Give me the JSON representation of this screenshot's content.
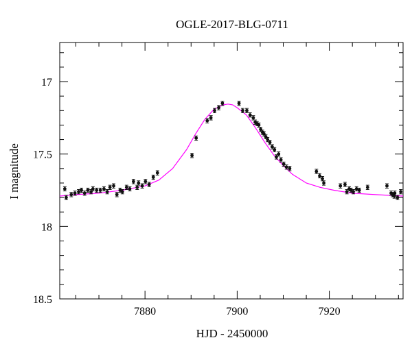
{
  "chart_data": {
    "type": "scatter",
    "title": "OGLE-2017-BLG-0711",
    "xlabel": "HJD - 2450000",
    "ylabel": "I magnitude",
    "xlim": [
      7861.5,
      7936
    ],
    "ylim": [
      18.5,
      16.73
    ],
    "y_inverted": true,
    "x_ticks": [
      7880,
      7900,
      7920
    ],
    "x_tick_labels": [
      "7880",
      "7900",
      "7920"
    ],
    "y_ticks": [
      17,
      17.5,
      18,
      18.5
    ],
    "y_tick_labels": [
      "17",
      "17.5",
      "18",
      "18.5"
    ],
    "grid": false,
    "colors": {
      "points": "#111111",
      "model": "#ff00ff"
    },
    "model": {
      "x": [
        7861.5,
        7865,
        7870,
        7875,
        7880,
        7883,
        7886,
        7889,
        7891,
        7893,
        7895,
        7897,
        7898,
        7899,
        7900,
        7902,
        7904,
        7906,
        7908,
        7910,
        7912,
        7915,
        7918,
        7921,
        7925,
        7930,
        7936
      ],
      "y": [
        17.79,
        17.78,
        17.77,
        17.75,
        17.72,
        17.68,
        17.6,
        17.47,
        17.36,
        17.26,
        17.19,
        17.16,
        17.155,
        17.16,
        17.18,
        17.23,
        17.32,
        17.42,
        17.51,
        17.58,
        17.64,
        17.7,
        17.73,
        17.75,
        17.77,
        17.78,
        17.79
      ]
    },
    "series": [
      {
        "x": [
          7862.6,
          7862.9,
          7864,
          7864.8,
          7865.6,
          7866.2,
          7866.9,
          7867.6,
          7868.3,
          7868.7,
          7869.5,
          7870.3,
          7871.1,
          7871.8,
          7872.4,
          7873.2,
          7873.9,
          7874.6,
          7875.1,
          7876,
          7876.7,
          7877.5,
          7878.3,
          7878.6,
          7879.4,
          7880.1,
          7880.9,
          7881.8,
          7882.7,
          7890.2,
          7891.1,
          7893.5,
          7894.3,
          7895.1,
          7896,
          7896.8,
          7900.4,
          7901.2,
          7902.1,
          7902.8,
          7903.5,
          7903.9,
          7904.3,
          7904.7,
          7905.1,
          7905.5,
          7905.8,
          7906.2,
          7906.6,
          7907.1,
          7907.6,
          7908.1,
          7908.5,
          7909,
          7909.5,
          7910.1,
          7910.7,
          7911.4,
          7917.2,
          7917.9,
          7918.5,
          7918.8,
          7922.4,
          7923.4,
          7923.8,
          7924.3,
          7924.7,
          7925.2,
          7925.9,
          7926.5,
          7928.3,
          7932.5,
          7933.4,
          7934.2,
          7935.5,
          7933.7,
          7934.1,
          7934.8
        ],
        "y": [
          17.74,
          17.8,
          17.78,
          17.77,
          17.76,
          17.75,
          17.77,
          17.75,
          17.76,
          17.74,
          17.75,
          17.75,
          17.74,
          17.76,
          17.73,
          17.72,
          17.78,
          17.75,
          17.76,
          17.73,
          17.74,
          17.69,
          17.73,
          17.7,
          17.72,
          17.69,
          17.71,
          17.66,
          17.63,
          17.51,
          17.39,
          17.27,
          17.25,
          17.2,
          17.18,
          17.15,
          17.15,
          17.2,
          17.2,
          17.23,
          17.25,
          17.28,
          17.29,
          17.3,
          17.33,
          17.35,
          17.36,
          17.38,
          17.4,
          17.42,
          17.45,
          17.47,
          17.52,
          17.5,
          17.54,
          17.57,
          17.59,
          17.6,
          17.62,
          17.65,
          17.67,
          17.7,
          17.72,
          17.71,
          17.76,
          17.74,
          17.75,
          17.76,
          17.74,
          17.75,
          17.73,
          17.72,
          17.77,
          17.77,
          17.76,
          17.78,
          17.79,
          17.8
        ],
        "err": [
          0.015,
          0.015,
          0.015,
          0.015,
          0.015,
          0.015,
          0.015,
          0.015,
          0.015,
          0.015,
          0.015,
          0.015,
          0.015,
          0.015,
          0.015,
          0.015,
          0.015,
          0.015,
          0.015,
          0.015,
          0.015,
          0.015,
          0.015,
          0.015,
          0.015,
          0.015,
          0.015,
          0.015,
          0.015,
          0.015,
          0.015,
          0.015,
          0.015,
          0.015,
          0.015,
          0.015,
          0.015,
          0.015,
          0.015,
          0.015,
          0.015,
          0.015,
          0.015,
          0.015,
          0.015,
          0.015,
          0.015,
          0.015,
          0.015,
          0.015,
          0.015,
          0.015,
          0.015,
          0.015,
          0.015,
          0.015,
          0.015,
          0.015,
          0.015,
          0.015,
          0.015,
          0.015,
          0.015,
          0.015,
          0.015,
          0.015,
          0.015,
          0.015,
          0.015,
          0.015,
          0.015,
          0.015,
          0.015,
          0.015,
          0.015,
          0.015,
          0.015,
          0.015
        ]
      }
    ]
  }
}
